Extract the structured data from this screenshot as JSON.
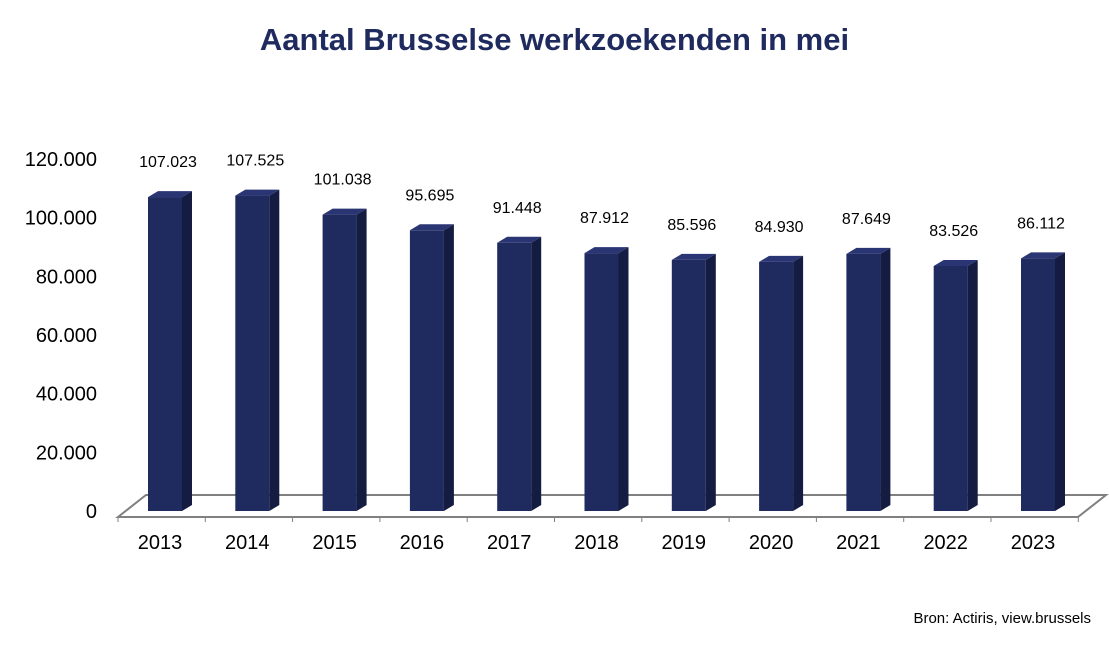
{
  "chart_data": {
    "type": "bar",
    "title": "Aantal Brusselse werkzoekenden in mei",
    "xlabel": "",
    "ylabel": "",
    "categories": [
      "2013",
      "2014",
      "2015",
      "2016",
      "2017",
      "2018",
      "2019",
      "2020",
      "2021",
      "2022",
      "2023"
    ],
    "values": [
      107023,
      107525,
      101038,
      95695,
      91448,
      87912,
      85596,
      84930,
      87649,
      83526,
      86112
    ],
    "data_labels": [
      "107.023",
      "107.525",
      "101.038",
      "95.695",
      "91.448",
      "87.912",
      "85.596",
      "84.930",
      "87.649",
      "83.526",
      "86.112"
    ],
    "ylim": [
      0,
      120000
    ],
    "y_ticks": [
      0,
      20000,
      40000,
      60000,
      80000,
      100000,
      120000
    ],
    "y_tick_labels": [
      "0",
      "20.000",
      "40.000",
      "60.000",
      "80.000",
      "100.000",
      "120.000"
    ],
    "grid": false,
    "legend": "none",
    "style": "3d-column",
    "colors": {
      "bar_front": "#1f2a5e",
      "bar_side": "#141c42",
      "bar_top": "#2a3573",
      "title": "#1f2a5e",
      "axis": "#808080"
    }
  },
  "source_note": "Bron: Actiris, view.brussels"
}
